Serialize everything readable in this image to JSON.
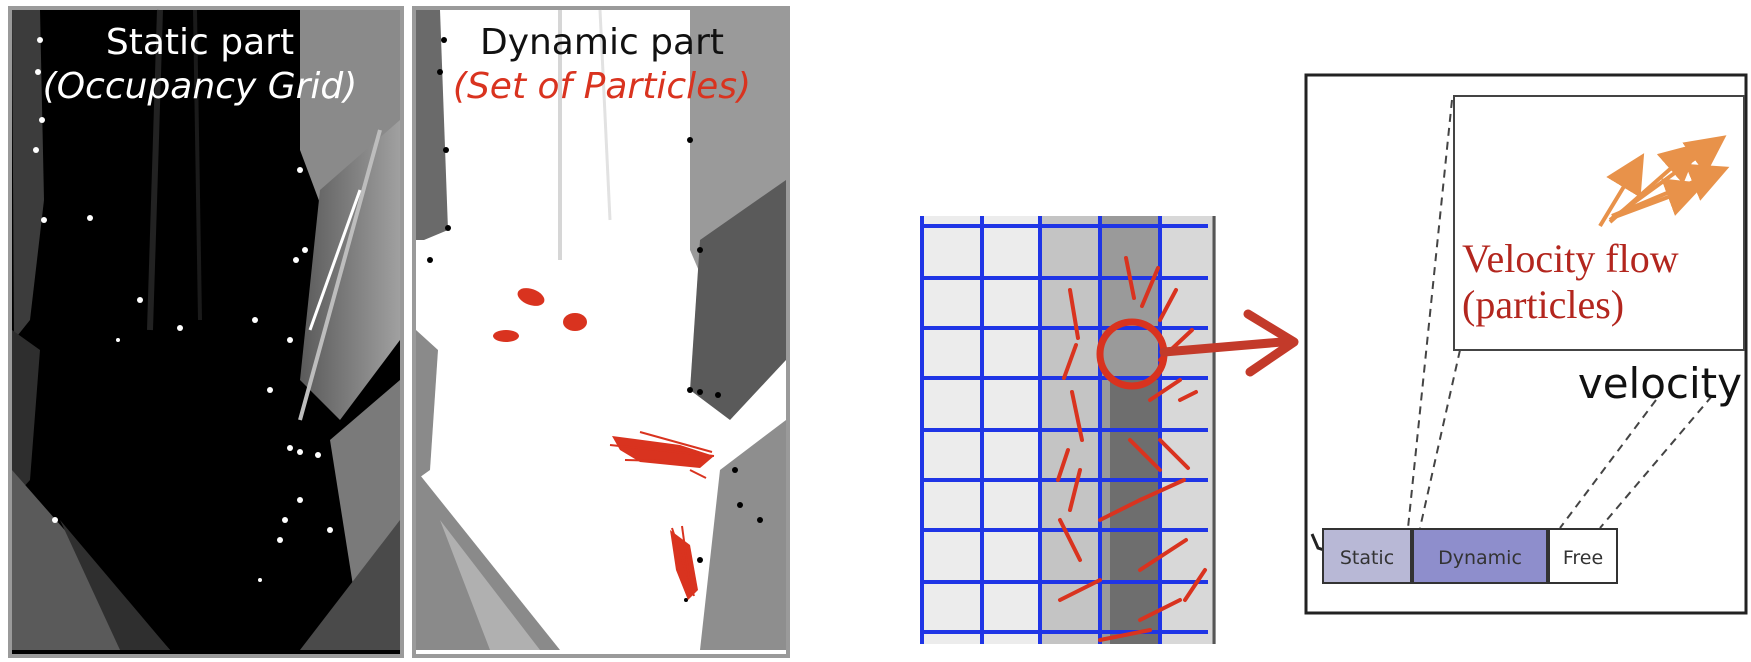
{
  "panels": {
    "static": {
      "title": "Static part",
      "subtitle": "(Occupancy Grid)"
    },
    "dynamic": {
      "title": "Dynamic part",
      "subtitle": "(Set of Particles)"
    }
  },
  "cell_detail": {
    "flow_label_line1": "Velocity flow",
    "flow_label_line2": "(particles)",
    "velocity_label": "velocity",
    "state_bar": {
      "static_label": "Static",
      "dynamic_label": "Dynamic",
      "free_label": "Free"
    }
  },
  "colors": {
    "grid_lines": "#1f35e6",
    "particles": "#d9331f",
    "velocity_arrows": "#e8924a",
    "flow_text": "#b3261e",
    "static_segment": "#b8b8d6",
    "dynamic_segment": "#8e8ecc"
  }
}
